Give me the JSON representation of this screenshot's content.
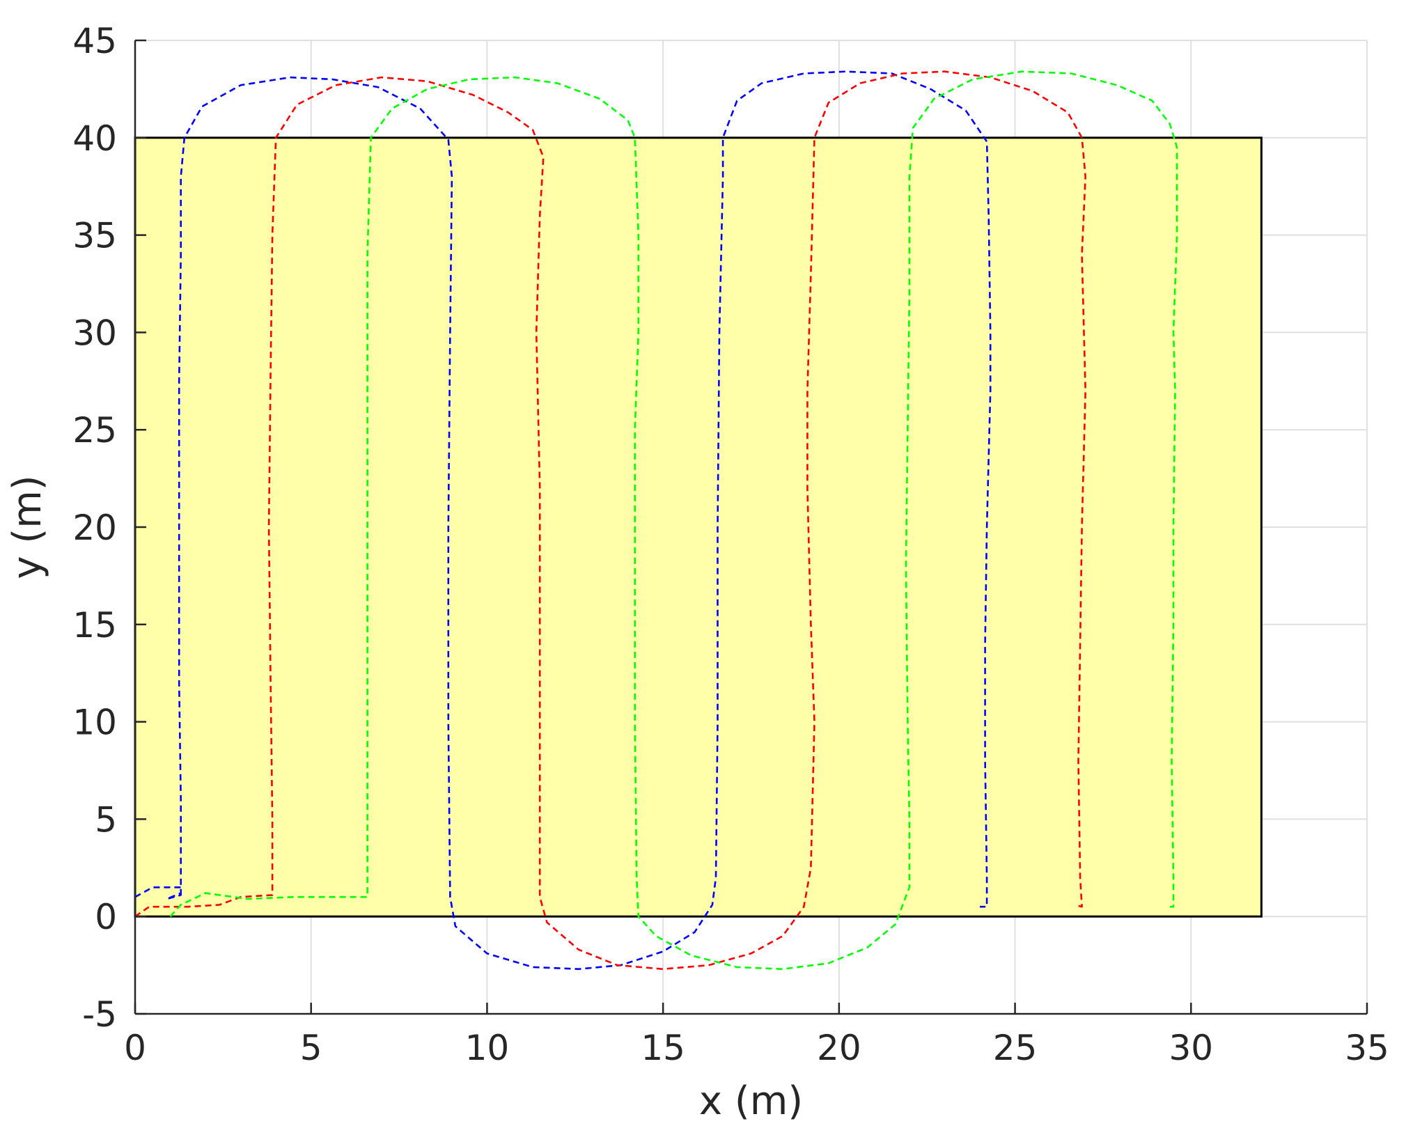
{
  "chart_data": {
    "type": "line",
    "title": "",
    "xlabel": "x (m)",
    "ylabel": "y (m)",
    "xlim": [
      0,
      35
    ],
    "ylim": [
      -5,
      45
    ],
    "xticks": [
      0,
      5,
      10,
      15,
      20,
      25,
      30,
      35
    ],
    "yticks": [
      -5,
      0,
      5,
      10,
      15,
      20,
      25,
      30,
      35,
      40,
      45
    ],
    "grid": true,
    "legend": "none",
    "region": {
      "x": [
        0,
        32
      ],
      "y": [
        0,
        40
      ],
      "fill": "#ffffaa",
      "edge": "#000000"
    },
    "series": [
      {
        "color": "#0000ff",
        "style": "dashed",
        "points": [
          [
            0,
            1
          ],
          [
            0.5,
            1.5
          ],
          [
            1.3,
            1.5
          ],
          [
            1.3,
            1.1
          ],
          [
            0.9,
            0.9
          ],
          [
            1.3,
            1.2
          ],
          [
            1.3,
            6
          ],
          [
            1.25,
            12
          ],
          [
            1.25,
            20
          ],
          [
            1.25,
            27.5
          ],
          [
            1.3,
            34
          ],
          [
            1.3,
            38
          ],
          [
            1.4,
            40
          ],
          [
            1.9,
            41.6
          ],
          [
            3,
            42.7
          ],
          [
            4.4,
            43.1
          ],
          [
            5.6,
            43.0
          ],
          [
            6.9,
            42.6
          ],
          [
            8.1,
            41.5
          ],
          [
            8.9,
            39.9
          ],
          [
            9.0,
            38.0
          ],
          [
            8.95,
            30
          ],
          [
            8.9,
            20
          ],
          [
            8.9,
            10
          ],
          [
            8.95,
            1
          ],
          [
            9.1,
            -0.5
          ],
          [
            10.0,
            -1.9
          ],
          [
            11.3,
            -2.6
          ],
          [
            12.6,
            -2.7
          ],
          [
            13.8,
            -2.5
          ],
          [
            15.0,
            -1.8
          ],
          [
            15.9,
            -0.8
          ],
          [
            16.4,
            0.6
          ],
          [
            16.5,
            2
          ],
          [
            16.55,
            10
          ],
          [
            16.55,
            20
          ],
          [
            16.6,
            30
          ],
          [
            16.7,
            38
          ],
          [
            16.7,
            40
          ],
          [
            17.1,
            41.9
          ],
          [
            17.8,
            42.8
          ],
          [
            19.0,
            43.3
          ],
          [
            20.2,
            43.4
          ],
          [
            21.5,
            43.3
          ],
          [
            22.6,
            42.5
          ],
          [
            23.6,
            41.4
          ],
          [
            24.2,
            39.8
          ],
          [
            24.25,
            36
          ],
          [
            24.3,
            30
          ],
          [
            24.3,
            27
          ],
          [
            24.2,
            20
          ],
          [
            24.15,
            14
          ],
          [
            24.15,
            8
          ],
          [
            24.2,
            2
          ],
          [
            24.2,
            0.5
          ],
          [
            24.0,
            0.5
          ]
        ]
      },
      {
        "color": "#ff0000",
        "style": "dashed",
        "points": [
          [
            0,
            0
          ],
          [
            0.4,
            0.5
          ],
          [
            1.5,
            0.5
          ],
          [
            2.4,
            0.6
          ],
          [
            3.0,
            1.0
          ],
          [
            3.9,
            1.1
          ],
          [
            3.9,
            5
          ],
          [
            3.85,
            12
          ],
          [
            3.8,
            20
          ],
          [
            3.85,
            28
          ],
          [
            3.9,
            35
          ],
          [
            4.0,
            40
          ],
          [
            4.6,
            41.7
          ],
          [
            5.7,
            42.7
          ],
          [
            7.0,
            43.1
          ],
          [
            8.3,
            42.9
          ],
          [
            9.6,
            42.2
          ],
          [
            10.6,
            41.3
          ],
          [
            11.3,
            40.4
          ],
          [
            11.6,
            39.0
          ],
          [
            11.5,
            36
          ],
          [
            11.4,
            30
          ],
          [
            11.5,
            22
          ],
          [
            11.5,
            15
          ],
          [
            11.5,
            8
          ],
          [
            11.5,
            1
          ],
          [
            11.7,
            -0.3
          ],
          [
            12.6,
            -1.7
          ],
          [
            13.7,
            -2.5
          ],
          [
            15.0,
            -2.7
          ],
          [
            16.3,
            -2.5
          ],
          [
            17.5,
            -1.9
          ],
          [
            18.4,
            -1.0
          ],
          [
            19.0,
            0.5
          ],
          [
            19.2,
            2.5
          ],
          [
            19.3,
            10
          ],
          [
            19.2,
            15
          ],
          [
            19.1,
            22
          ],
          [
            19.1,
            27
          ],
          [
            19.2,
            33
          ],
          [
            19.3,
            40
          ],
          [
            19.7,
            41.8
          ],
          [
            20.6,
            42.8
          ],
          [
            21.8,
            43.3
          ],
          [
            23.0,
            43.4
          ],
          [
            24.3,
            43.1
          ],
          [
            25.5,
            42.4
          ],
          [
            26.5,
            41.3
          ],
          [
            26.9,
            40
          ],
          [
            27.0,
            38
          ],
          [
            26.9,
            34
          ],
          [
            27.0,
            27
          ],
          [
            26.9,
            20
          ],
          [
            26.85,
            14
          ],
          [
            26.8,
            8
          ],
          [
            26.85,
            2
          ],
          [
            26.9,
            0.5
          ],
          [
            26.7,
            0.6
          ]
        ]
      },
      {
        "color": "#00ff00",
        "style": "dashed",
        "points": [
          [
            1.0,
            0
          ],
          [
            1.3,
            0.6
          ],
          [
            2.0,
            1.2
          ],
          [
            3.2,
            0.9
          ],
          [
            4.5,
            1.0
          ],
          [
            5.9,
            1.0
          ],
          [
            6.6,
            1.0
          ],
          [
            6.6,
            5
          ],
          [
            6.6,
            12
          ],
          [
            6.6,
            20
          ],
          [
            6.6,
            27.5
          ],
          [
            6.6,
            34
          ],
          [
            6.7,
            40
          ],
          [
            7.3,
            41.5
          ],
          [
            8.3,
            42.5
          ],
          [
            9.5,
            43.0
          ],
          [
            10.8,
            43.1
          ],
          [
            12.0,
            42.8
          ],
          [
            13.2,
            42.0
          ],
          [
            14.0,
            40.9
          ],
          [
            14.2,
            40.0
          ],
          [
            14.3,
            35
          ],
          [
            14.3,
            30
          ],
          [
            14.2,
            25
          ],
          [
            14.2,
            18
          ],
          [
            14.2,
            10
          ],
          [
            14.25,
            2
          ],
          [
            14.3,
            0
          ],
          [
            14.8,
            -1.0
          ],
          [
            15.8,
            -2.0
          ],
          [
            17.1,
            -2.6
          ],
          [
            18.4,
            -2.7
          ],
          [
            19.7,
            -2.4
          ],
          [
            20.8,
            -1.6
          ],
          [
            21.6,
            -0.4
          ],
          [
            22.0,
            1.5
          ],
          [
            22.0,
            5
          ],
          [
            21.95,
            10
          ],
          [
            21.9,
            18
          ],
          [
            21.95,
            25
          ],
          [
            22.0,
            32
          ],
          [
            22.0,
            38
          ],
          [
            22.1,
            40.5
          ],
          [
            22.7,
            42.0
          ],
          [
            23.8,
            43.0
          ],
          [
            25.2,
            43.4
          ],
          [
            26.6,
            43.3
          ],
          [
            27.9,
            42.7
          ],
          [
            28.9,
            41.9
          ],
          [
            29.4,
            40.7
          ],
          [
            29.6,
            39.5
          ],
          [
            29.6,
            35
          ],
          [
            29.5,
            30
          ],
          [
            29.55,
            27
          ],
          [
            29.5,
            20
          ],
          [
            29.5,
            15
          ],
          [
            29.45,
            8
          ],
          [
            29.5,
            2
          ],
          [
            29.5,
            0.5
          ],
          [
            29.4,
            0.5
          ]
        ]
      }
    ]
  }
}
